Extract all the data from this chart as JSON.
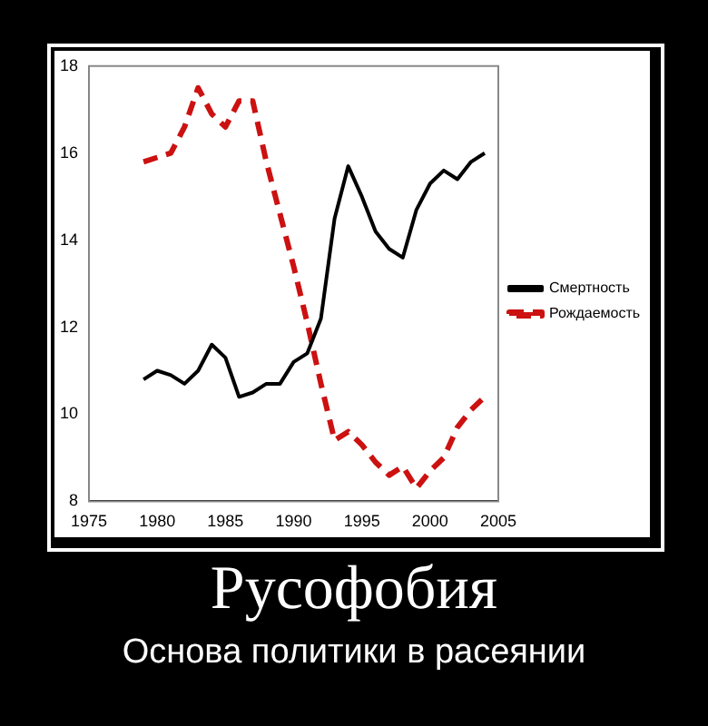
{
  "chart_data": {
    "type": "line",
    "title": "Русофобия",
    "subtitle": "Основа политики в расеянии",
    "x": [
      1979,
      1980,
      1981,
      1982,
      1983,
      1984,
      1985,
      1986,
      1987,
      1988,
      1989,
      1990,
      1991,
      1992,
      1993,
      1994,
      1995,
      1996,
      1997,
      1998,
      1999,
      2000,
      2001,
      2002,
      2003,
      2004
    ],
    "series": [
      {
        "name": "Смертность",
        "color": "#000000",
        "line_style": "solid",
        "values": [
          10.8,
          11.0,
          10.9,
          10.7,
          11.0,
          11.6,
          11.3,
          10.4,
          10.5,
          10.7,
          10.7,
          11.2,
          11.4,
          12.2,
          14.5,
          15.7,
          15.0,
          14.2,
          13.8,
          13.6,
          14.7,
          15.3,
          15.6,
          15.4,
          15.8,
          16.0
        ]
      },
      {
        "name": "Рождаемость",
        "color": "#cc1111",
        "line_style": "dashed",
        "values": [
          15.8,
          15.9,
          16.0,
          16.6,
          17.5,
          16.9,
          16.6,
          17.2,
          17.2,
          15.8,
          14.6,
          13.4,
          12.1,
          10.7,
          9.4,
          9.6,
          9.3,
          8.9,
          8.6,
          8.8,
          8.3,
          8.7,
          9.0,
          9.7,
          10.1,
          10.4
        ]
      }
    ],
    "xlim": [
      1975,
      2005
    ],
    "xticks": [
      1975,
      1980,
      1985,
      1990,
      1995,
      2000,
      2005
    ],
    "ylim": [
      8,
      18
    ],
    "yticks": [
      8,
      10,
      12,
      14,
      16,
      18
    ],
    "grid": false,
    "legend": "right",
    "marker": "none"
  }
}
